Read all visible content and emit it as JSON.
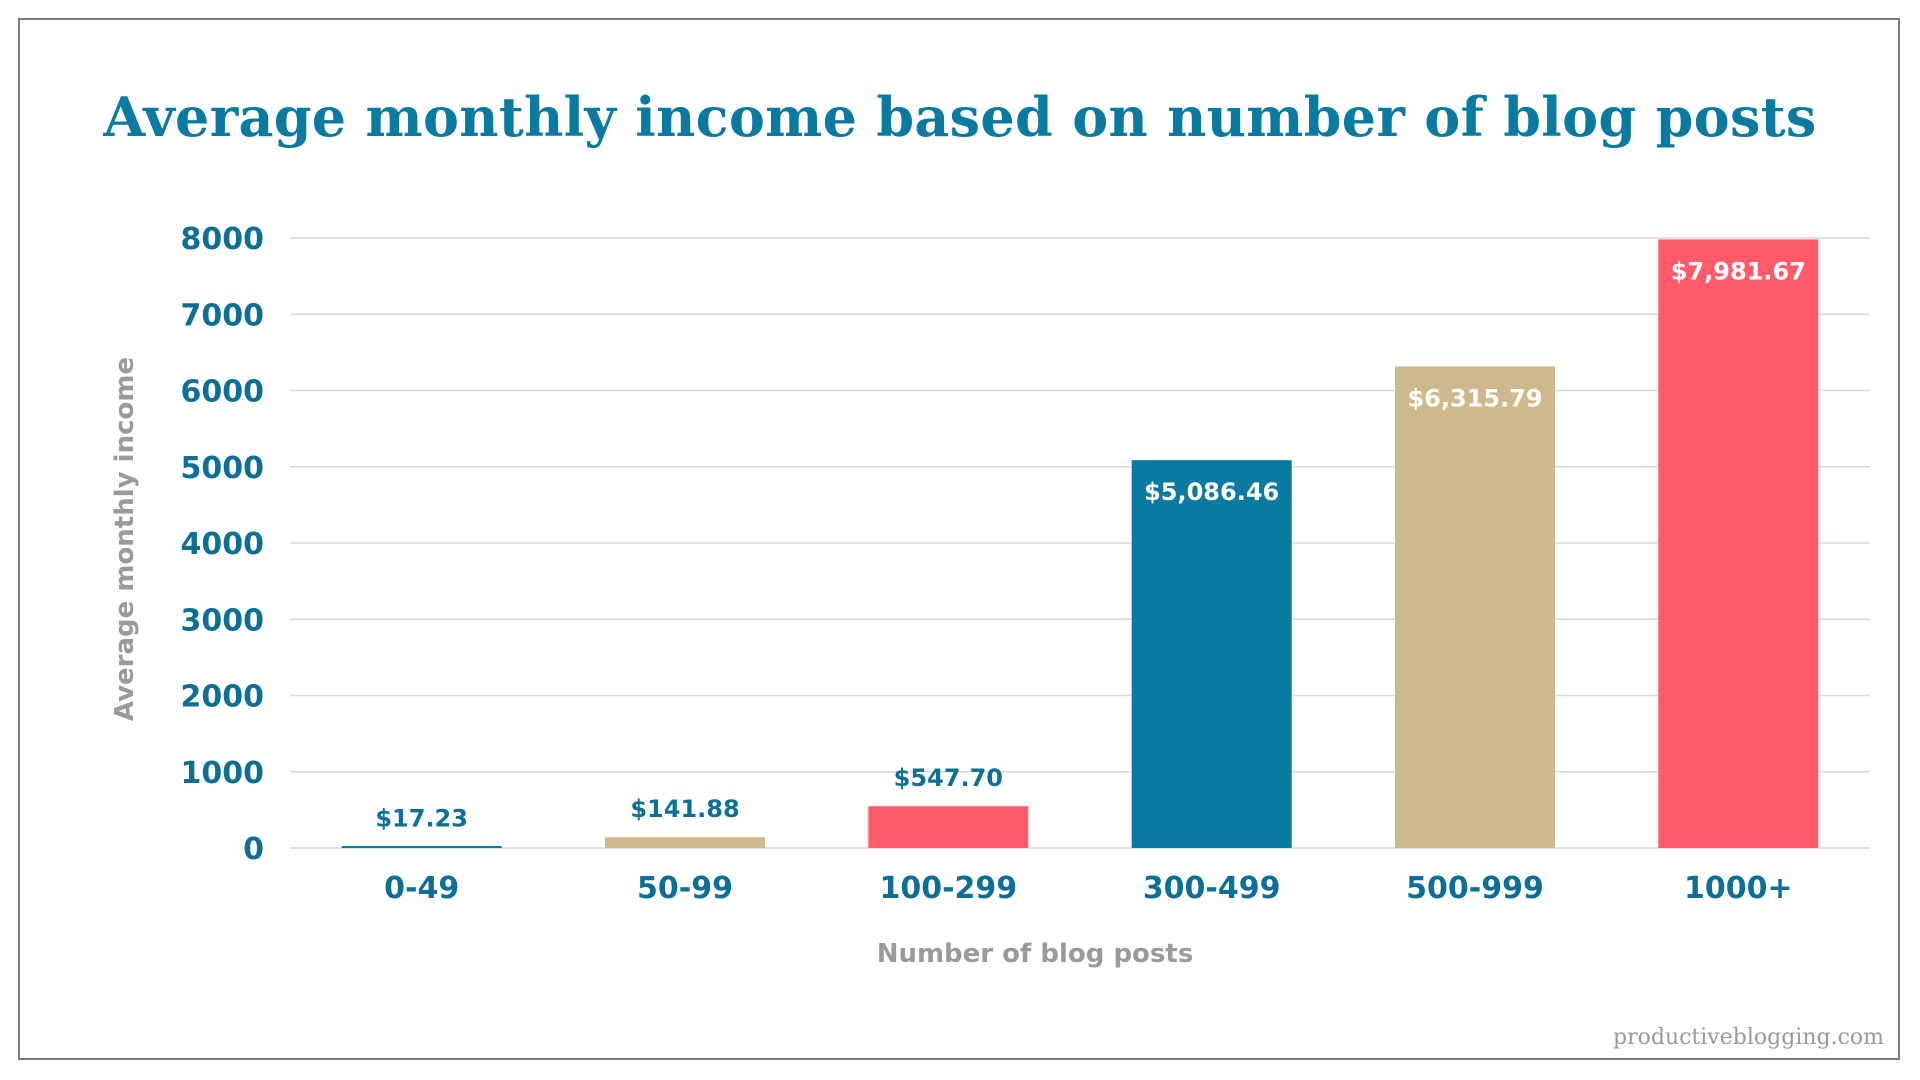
{
  "chart_data": {
    "type": "bar",
    "title": "Average monthly income based on number of blog posts",
    "xlabel": "Number of blog posts",
    "ylabel": "Average monthly income",
    "categories": [
      "0-49",
      "50-99",
      "100-299",
      "300-499",
      "500-999",
      "1000+"
    ],
    "values": [
      17.23,
      141.88,
      547.7,
      5086.46,
      6315.79,
      7981.67
    ],
    "data_labels": [
      "$17.23",
      "$141.88",
      "$547.70",
      "$5,086.46",
      "$6,315.79",
      "$7,981.67"
    ],
    "bar_colors": [
      "#0a7aa0",
      "#cdb98d",
      "#ff5a6a",
      "#0a7aa0",
      "#cdb98d",
      "#ff5a6a"
    ],
    "ylim": [
      0,
      8000
    ],
    "yticks": [
      0,
      1000,
      2000,
      3000,
      4000,
      5000,
      6000,
      7000,
      8000
    ],
    "grid": true,
    "legend": "none"
  },
  "watermark": "productiveblogging.com",
  "colors": {
    "title": "#0a7aa0",
    "tick": "#0d6f96",
    "axis_title": "#9a9a9a",
    "grid": "#d9d9d9",
    "label_outside": "#0d6f96",
    "label_inside": "#ffffff"
  }
}
